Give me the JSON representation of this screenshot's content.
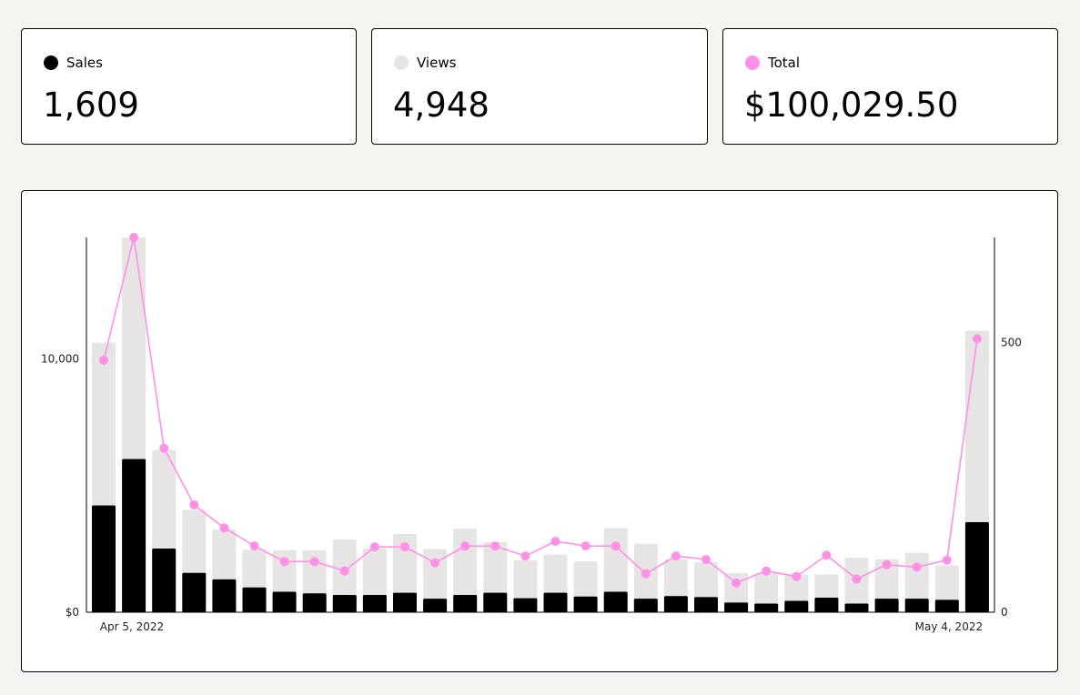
{
  "colors": {
    "sales": "#000000",
    "views": "#e6e5e3",
    "total": "#ff90e8",
    "background": "#f4f4f0"
  },
  "cards": [
    {
      "label": "Sales",
      "value": "1,609",
      "color": "#000000"
    },
    {
      "label": "Views",
      "value": "4,948",
      "color": "#e6e5e3"
    },
    {
      "label": "Total",
      "value": "$100,029.50",
      "color": "#ff90e8"
    }
  ],
  "chart_data": {
    "type": "bar",
    "x_start_label": "Apr 5, 2022",
    "x_end_label": "May 4, 2022",
    "left_axis": {
      "ticks": [
        "$0",
        "10,000"
      ],
      "ylim": [
        0,
        14800
      ]
    },
    "right_axis": {
      "ticks": [
        "0",
        "500"
      ],
      "ylim": [
        0,
        695
      ]
    },
    "series": [
      {
        "name": "Sales",
        "type": "bar",
        "axis": "right",
        "values": [
          198,
          284,
          118,
          73,
          61,
          46,
          38,
          35,
          32,
          32,
          36,
          25,
          32,
          36,
          26,
          36,
          29,
          38,
          25,
          30,
          28,
          18,
          16,
          21,
          27,
          16,
          25,
          25,
          23,
          167
        ]
      },
      {
        "name": "Views",
        "type": "bar",
        "axis": "right",
        "values": [
          500,
          695,
          301,
          190,
          154,
          116,
          115,
          115,
          135,
          118,
          145,
          117,
          155,
          130,
          96,
          107,
          94,
          156,
          127,
          98,
          93,
          73,
          73,
          70,
          70,
          101,
          98,
          110,
          87,
          522
        ]
      },
      {
        "name": "Total",
        "type": "line",
        "axis": "left",
        "values": [
          9950,
          14800,
          6480,
          4240,
          3330,
          2620,
          2000,
          2000,
          1630,
          2580,
          2580,
          1950,
          2610,
          2610,
          2220,
          2800,
          2620,
          2610,
          1520,
          2220,
          2080,
          1160,
          1630,
          1410,
          2250,
          1310,
          1880,
          1780,
          2060,
          10800
        ]
      }
    ]
  }
}
